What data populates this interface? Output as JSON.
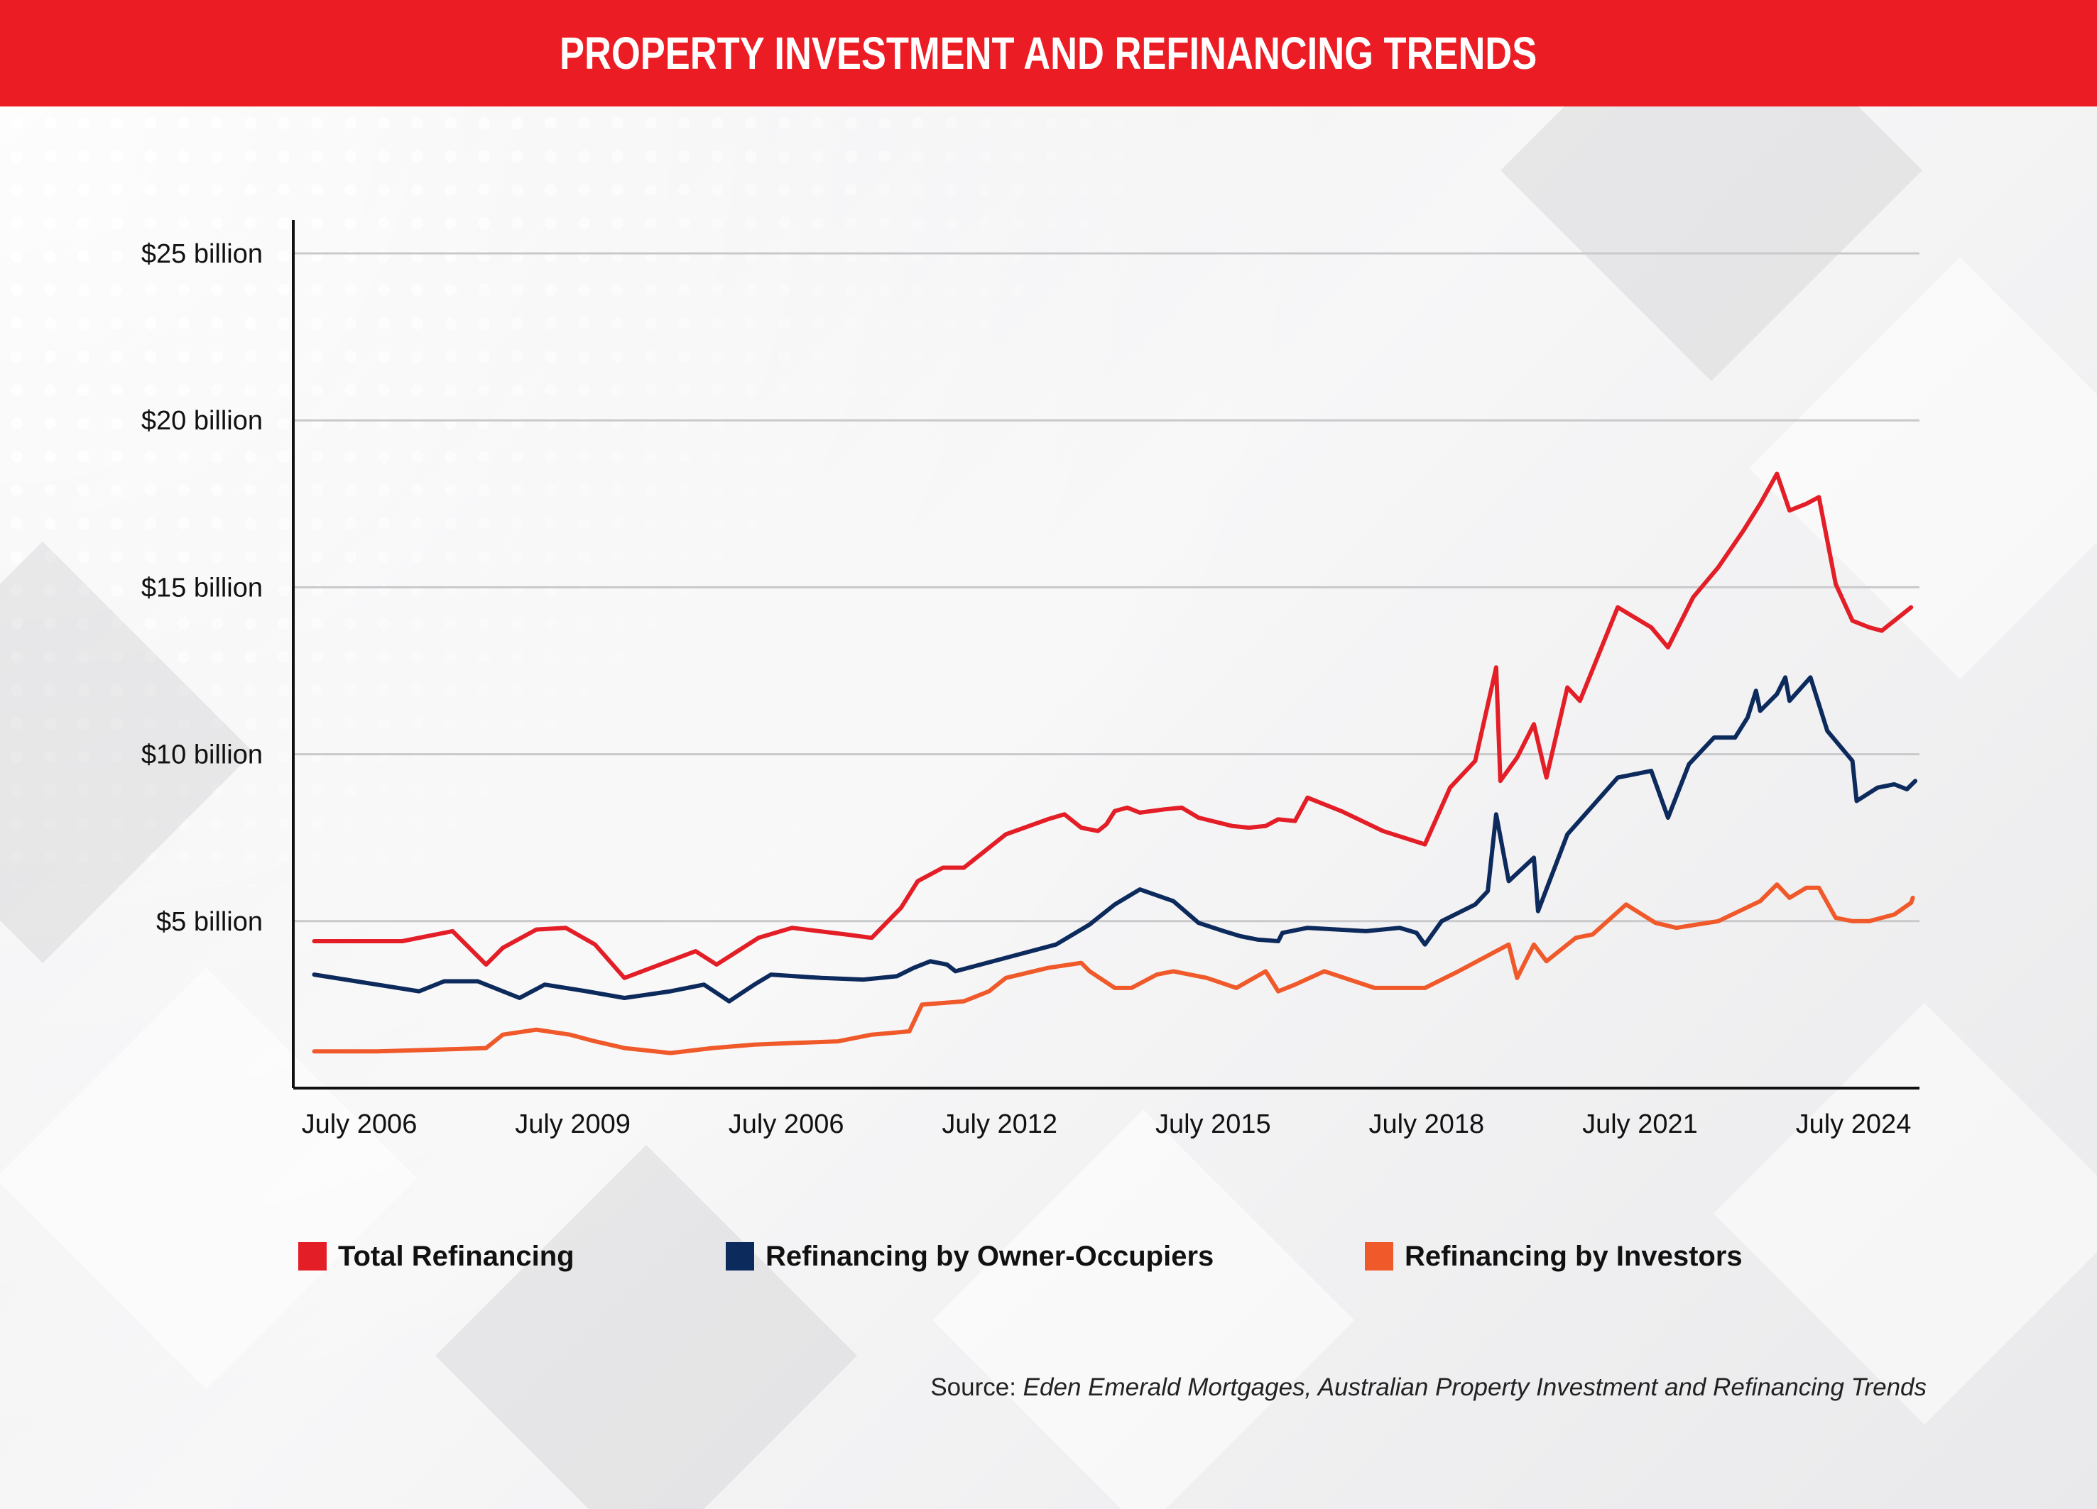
{
  "header": {
    "title": "PROPERTY INVESTMENT AND REFINANCING TRENDS"
  },
  "colors": {
    "header_bg": "#ec1c24",
    "total": "#e31e26",
    "owner": "#0d2a5c",
    "investors": "#f0592a"
  },
  "chart_data": {
    "type": "line",
    "y_ticks": [
      "$5 billion",
      "$10 billion",
      "$15 billion",
      "$20 billion",
      "$25 billion"
    ],
    "x_ticks": [
      "July 2006",
      "July 2009",
      "July 2006",
      "July 2012",
      "July 2015",
      "July 2018",
      "July 2021",
      "July 2024"
    ],
    "ylim": [
      0,
      26
    ],
    "xlim": [
      2005.5,
      2024.9
    ],
    "grid": true,
    "legend_position": "bottom",
    "series": [
      {
        "name": "Total Refinancing",
        "color": "#e31e26",
        "points": [
          [
            2005.75,
            4.4
          ],
          [
            2006.5,
            4.4
          ],
          [
            2006.8,
            4.4
          ],
          [
            2007.4,
            4.7
          ],
          [
            2007.8,
            3.7
          ],
          [
            2008.0,
            4.2
          ],
          [
            2008.4,
            4.75
          ],
          [
            2008.75,
            4.8
          ],
          [
            2009.1,
            4.3
          ],
          [
            2009.45,
            3.3
          ],
          [
            2010.3,
            4.1
          ],
          [
            2010.55,
            3.7
          ],
          [
            2011.05,
            4.5
          ],
          [
            2011.45,
            4.8
          ],
          [
            2012.1,
            4.6
          ],
          [
            2012.4,
            4.5
          ],
          [
            2012.75,
            5.4
          ],
          [
            2012.95,
            6.2
          ],
          [
            2013.25,
            6.6
          ],
          [
            2013.5,
            6.6
          ],
          [
            2014.0,
            7.6
          ],
          [
            2014.5,
            8.05
          ],
          [
            2014.7,
            8.2
          ],
          [
            2014.9,
            7.8
          ],
          [
            2015.1,
            7.7
          ],
          [
            2015.2,
            7.9
          ],
          [
            2015.3,
            8.3
          ],
          [
            2015.45,
            8.4
          ],
          [
            2015.6,
            8.25
          ],
          [
            2015.9,
            8.35
          ],
          [
            2016.1,
            8.4
          ],
          [
            2016.3,
            8.1
          ],
          [
            2016.7,
            7.85
          ],
          [
            2016.9,
            7.8
          ],
          [
            2017.1,
            7.85
          ],
          [
            2017.25,
            8.05
          ],
          [
            2017.45,
            8.0
          ],
          [
            2017.6,
            8.7
          ],
          [
            2018.0,
            8.3
          ],
          [
            2018.5,
            7.7
          ],
          [
            2019.0,
            7.3
          ],
          [
            2019.3,
            9.0
          ],
          [
            2019.6,
            9.8
          ],
          [
            2019.85,
            12.6
          ],
          [
            2019.9,
            9.2
          ],
          [
            2020.1,
            9.9
          ],
          [
            2020.3,
            10.9
          ],
          [
            2020.45,
            9.3
          ],
          [
            2020.7,
            12.0
          ],
          [
            2020.85,
            11.6
          ],
          [
            2021.3,
            14.4
          ],
          [
            2021.7,
            13.8
          ],
          [
            2021.9,
            13.2
          ],
          [
            2022.2,
            14.7
          ],
          [
            2022.5,
            15.6
          ],
          [
            2022.8,
            16.7
          ],
          [
            2023.0,
            17.5
          ],
          [
            2023.2,
            18.4
          ],
          [
            2023.35,
            17.3
          ],
          [
            2023.55,
            17.5
          ],
          [
            2023.7,
            17.7
          ],
          [
            2023.9,
            15.1
          ],
          [
            2024.1,
            14.0
          ],
          [
            2024.3,
            13.8
          ],
          [
            2024.45,
            13.7
          ],
          [
            2024.6,
            14.0
          ],
          [
            2024.8,
            14.4
          ]
        ]
      },
      {
        "name": "Refinancing by Owner-Occupiers",
        "color": "#0d2a5c",
        "points": [
          [
            2005.75,
            3.4
          ],
          [
            2006.5,
            3.1
          ],
          [
            2007.0,
            2.9
          ],
          [
            2007.3,
            3.2
          ],
          [
            2007.7,
            3.2
          ],
          [
            2008.2,
            2.7
          ],
          [
            2008.5,
            3.1
          ],
          [
            2009.0,
            2.9
          ],
          [
            2009.45,
            2.7
          ],
          [
            2010.0,
            2.9
          ],
          [
            2010.4,
            3.1
          ],
          [
            2010.7,
            2.6
          ],
          [
            2011.0,
            3.1
          ],
          [
            2011.2,
            3.4
          ],
          [
            2011.8,
            3.3
          ],
          [
            2012.3,
            3.25
          ],
          [
            2012.7,
            3.35
          ],
          [
            2012.9,
            3.6
          ],
          [
            2013.1,
            3.8
          ],
          [
            2013.3,
            3.7
          ],
          [
            2013.4,
            3.5
          ],
          [
            2014.0,
            3.9
          ],
          [
            2014.6,
            4.3
          ],
          [
            2015.0,
            4.9
          ],
          [
            2015.3,
            5.5
          ],
          [
            2015.6,
            5.95
          ],
          [
            2016.0,
            5.6
          ],
          [
            2016.3,
            4.95
          ],
          [
            2016.6,
            4.7
          ],
          [
            2016.8,
            4.55
          ],
          [
            2017.0,
            4.45
          ],
          [
            2017.25,
            4.4
          ],
          [
            2017.3,
            4.65
          ],
          [
            2017.6,
            4.8
          ],
          [
            2018.3,
            4.7
          ],
          [
            2018.7,
            4.8
          ],
          [
            2018.9,
            4.65
          ],
          [
            2019.0,
            4.3
          ],
          [
            2019.2,
            5.0
          ],
          [
            2019.6,
            5.5
          ],
          [
            2019.75,
            5.9
          ],
          [
            2019.85,
            8.2
          ],
          [
            2020.0,
            6.2
          ],
          [
            2020.3,
            6.9
          ],
          [
            2020.35,
            5.3
          ],
          [
            2020.7,
            7.6
          ],
          [
            2021.3,
            9.3
          ],
          [
            2021.7,
            9.5
          ],
          [
            2021.9,
            8.1
          ],
          [
            2022.15,
            9.7
          ],
          [
            2022.45,
            10.5
          ],
          [
            2022.7,
            10.5
          ],
          [
            2022.85,
            11.1
          ],
          [
            2022.95,
            11.9
          ],
          [
            2023.0,
            11.3
          ],
          [
            2023.2,
            11.8
          ],
          [
            2023.3,
            12.3
          ],
          [
            2023.35,
            11.6
          ],
          [
            2023.6,
            12.3
          ],
          [
            2023.8,
            10.7
          ],
          [
            2024.1,
            9.8
          ],
          [
            2024.15,
            8.6
          ],
          [
            2024.4,
            9.0
          ],
          [
            2024.6,
            9.1
          ],
          [
            2024.75,
            8.95
          ],
          [
            2024.85,
            9.2
          ]
        ]
      },
      {
        "name": "Refinancing by Investors",
        "color": "#f0592a",
        "points": [
          [
            2005.75,
            1.1
          ],
          [
            2006.5,
            1.1
          ],
          [
            2007.2,
            1.15
          ],
          [
            2007.8,
            1.2
          ],
          [
            2008.0,
            1.6
          ],
          [
            2008.4,
            1.75
          ],
          [
            2008.8,
            1.6
          ],
          [
            2009.1,
            1.4
          ],
          [
            2009.45,
            1.2
          ],
          [
            2010.0,
            1.05
          ],
          [
            2010.5,
            1.2
          ],
          [
            2011.0,
            1.3
          ],
          [
            2011.45,
            1.35
          ],
          [
            2012.0,
            1.4
          ],
          [
            2012.4,
            1.6
          ],
          [
            2012.85,
            1.7
          ],
          [
            2013.0,
            2.5
          ],
          [
            2013.5,
            2.6
          ],
          [
            2013.8,
            2.9
          ],
          [
            2014.0,
            3.3
          ],
          [
            2014.5,
            3.6
          ],
          [
            2014.9,
            3.75
          ],
          [
            2015.0,
            3.5
          ],
          [
            2015.3,
            3.0
          ],
          [
            2015.5,
            3.0
          ],
          [
            2015.8,
            3.4
          ],
          [
            2016.0,
            3.5
          ],
          [
            2016.4,
            3.3
          ],
          [
            2016.75,
            3.0
          ],
          [
            2017.1,
            3.5
          ],
          [
            2017.25,
            2.9
          ],
          [
            2017.45,
            3.1
          ],
          [
            2017.8,
            3.5
          ],
          [
            2018.4,
            3.0
          ],
          [
            2019.0,
            3.0
          ],
          [
            2019.4,
            3.5
          ],
          [
            2019.7,
            3.9
          ],
          [
            2020.0,
            4.3
          ],
          [
            2020.1,
            3.3
          ],
          [
            2020.3,
            4.3
          ],
          [
            2020.45,
            3.8
          ],
          [
            2020.8,
            4.5
          ],
          [
            2021.0,
            4.6
          ],
          [
            2021.4,
            5.5
          ],
          [
            2021.75,
            4.95
          ],
          [
            2022.0,
            4.8
          ],
          [
            2022.5,
            5.0
          ],
          [
            2023.0,
            5.6
          ],
          [
            2023.2,
            6.1
          ],
          [
            2023.35,
            5.7
          ],
          [
            2023.55,
            6.0
          ],
          [
            2023.7,
            6.0
          ],
          [
            2023.9,
            5.1
          ],
          [
            2024.1,
            5.0
          ],
          [
            2024.3,
            5.0
          ],
          [
            2024.6,
            5.2
          ],
          [
            2024.8,
            5.55
          ],
          [
            2024.82,
            5.7
          ]
        ]
      }
    ]
  },
  "source": {
    "prefix": "Source:",
    "text": " Eden Emerald Mortgages, Australian Property Investment and Refinancing Trends"
  }
}
